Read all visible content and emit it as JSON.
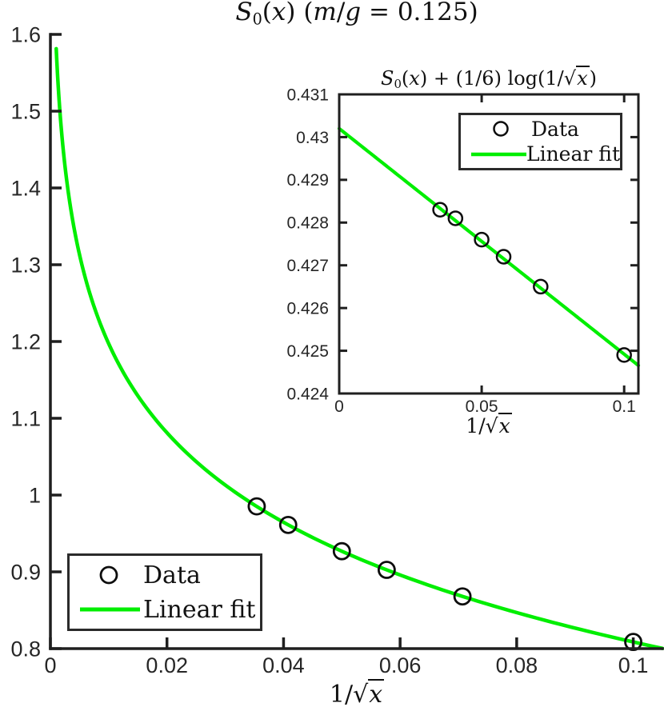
{
  "colors": {
    "green": "#00ee00",
    "axis": "#1f1f1f",
    "tick_label": "#262626",
    "marker": "#0d0d0d",
    "legend_border": "#2b2b2b"
  },
  "main": {
    "title_parts": [
      {
        "t": "S",
        "s": "it"
      },
      {
        "t": "0",
        "s": "sub"
      },
      {
        "t": "(",
        "s": "up"
      },
      {
        "t": "x",
        "s": "it"
      },
      {
        "t": ") (",
        "s": "up"
      },
      {
        "t": "m",
        "s": "it"
      },
      {
        "t": "/",
        "s": "up"
      },
      {
        "t": "g",
        "s": "it"
      },
      {
        "t": " = 0.125)",
        "s": "up"
      }
    ],
    "xlabel_parts": [
      {
        "t": "1/",
        "s": "up"
      },
      {
        "t": "√",
        "s": "up"
      },
      {
        "t": "x",
        "s": "rad"
      }
    ],
    "legend": {
      "items": [
        "Data",
        "Linear fit"
      ]
    }
  },
  "inset": {
    "title_parts": [
      {
        "t": "S",
        "s": "it"
      },
      {
        "t": "0",
        "s": "sub"
      },
      {
        "t": "(",
        "s": "up"
      },
      {
        "t": "x",
        "s": "it"
      },
      {
        "t": ") + (1/6) log(1/",
        "s": "up"
      },
      {
        "t": "√",
        "s": "up"
      },
      {
        "t": "x",
        "s": "rad"
      },
      {
        "t": ")",
        "s": "up"
      }
    ],
    "xlabel_parts": [
      {
        "t": "1/",
        "s": "up"
      },
      {
        "t": "√",
        "s": "up"
      },
      {
        "t": "x",
        "s": "rad"
      }
    ],
    "legend": {
      "items": [
        "Data",
        "Linear fit"
      ]
    }
  },
  "chart_data": [
    {
      "id": "main",
      "type": "line",
      "title": "S0(x) (m/g = 0.125)",
      "xlabel": "1/sqrt(x)",
      "ylabel": "",
      "xlim": [
        0,
        0.105
      ],
      "ylim": [
        0.8,
        1.6
      ],
      "grid": false,
      "box": false,
      "x_ticks": {
        "values": [
          0,
          0.02,
          0.04,
          0.06,
          0.08,
          0.1
        ],
        "labels": [
          "0",
          "0.02",
          "0.04",
          "0.06",
          "0.08",
          "0.1"
        ]
      },
      "y_ticks": {
        "values": [
          0.8,
          0.9,
          1.0,
          1.1,
          1.2,
          1.3,
          1.4,
          1.5,
          1.6
        ],
        "labels": [
          "0.8",
          "0.9",
          "1",
          "1.1",
          "1.2",
          "1.3",
          "1.4",
          "1.5",
          "1.6"
        ]
      },
      "legend_position": "bottom-left",
      "series": [
        {
          "name": "Data",
          "kind": "scatter",
          "x": [
            0.0354,
            0.0408,
            0.05,
            0.0577,
            0.0707,
            0.1
          ],
          "y": [
            0.9853,
            0.9611,
            0.9269,
            0.9026,
            0.868,
            0.8087
          ]
        },
        {
          "name": "Linear fit",
          "kind": "curve",
          "formula": "y = a + b*u + c*log(1/u)",
          "a": 0.4302,
          "b": -0.0528,
          "c": 0.1666667,
          "u_range": [
            0.001,
            0.105
          ]
        }
      ]
    },
    {
      "id": "inset",
      "type": "line",
      "title": "S0(x) + (1/6) log(1/sqrt(x))",
      "xlabel": "1/sqrt(x)",
      "ylabel": "",
      "xlim": [
        0,
        0.105
      ],
      "ylim": [
        0.424,
        0.431
      ],
      "grid": false,
      "box": true,
      "x_ticks": {
        "values": [
          0,
          0.05,
          0.1
        ],
        "labels": [
          "0",
          "0.05",
          "0.1"
        ]
      },
      "y_ticks": {
        "values": [
          0.424,
          0.425,
          0.426,
          0.427,
          0.428,
          0.429,
          0.43,
          0.431
        ],
        "labels": [
          "0.424",
          "0.425",
          "0.426",
          "0.427",
          "0.428",
          "0.429",
          "0.43",
          "0.431"
        ]
      },
      "legend_position": "top-right",
      "series": [
        {
          "name": "Data",
          "kind": "scatter",
          "x": [
            0.0354,
            0.0408,
            0.05,
            0.0577,
            0.0707,
            0.1
          ],
          "y": [
            0.4283,
            0.4281,
            0.4276,
            0.4272,
            0.4265,
            0.4249
          ]
        },
        {
          "name": "Linear fit",
          "kind": "curve",
          "formula": "y = a + b*u",
          "a": 0.4302,
          "b": -0.0528,
          "c": 0,
          "u_range": [
            0,
            0.105
          ]
        }
      ]
    }
  ]
}
